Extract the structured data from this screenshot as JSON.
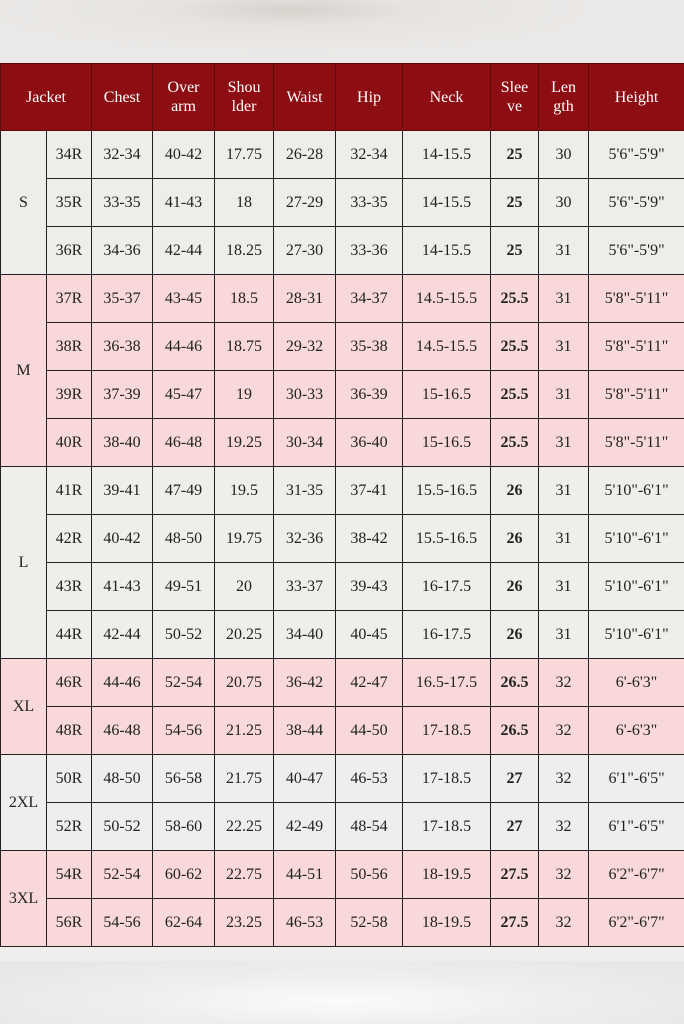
{
  "header": {
    "jacket": "Jacket",
    "chest": "Chest",
    "overarm": [
      "Over",
      "arm"
    ],
    "shoulder": [
      "Shou",
      "lder"
    ],
    "waist": "Waist",
    "hip": "Hip",
    "neck": "Neck",
    "sleeve": [
      "Slee",
      "ve"
    ],
    "length": [
      "Len",
      "gth"
    ],
    "height": "Height"
  },
  "colors": {
    "header_bg": "#8c0d12",
    "pink_row": "#f8d8d8",
    "white_row": "#ffffff"
  },
  "groups": [
    {
      "size": "S",
      "pink": false,
      "rows": [
        [
          "34R",
          "32-34",
          "40-42",
          "17.75",
          "26-28",
          "32-34",
          "14-15.5",
          "25",
          "30",
          "5'6\"-5'9\""
        ],
        [
          "35R",
          "33-35",
          "41-43",
          "18",
          "27-29",
          "33-35",
          "14-15.5",
          "25",
          "30",
          "5'6\"-5'9\""
        ],
        [
          "36R",
          "34-36",
          "42-44",
          "18.25",
          "27-30",
          "33-36",
          "14-15.5",
          "25",
          "31",
          "5'6\"-5'9\""
        ]
      ]
    },
    {
      "size": "M",
      "pink": true,
      "rows": [
        [
          "37R",
          "35-37",
          "43-45",
          "18.5",
          "28-31",
          "34-37",
          "14.5-15.5",
          "25.5",
          "31",
          "5'8\"-5'11\""
        ],
        [
          "38R",
          "36-38",
          "44-46",
          "18.75",
          "29-32",
          "35-38",
          "14.5-15.5",
          "25.5",
          "31",
          "5'8\"-5'11\""
        ],
        [
          "39R",
          "37-39",
          "45-47",
          "19",
          "30-33",
          "36-39",
          "15-16.5",
          "25.5",
          "31",
          "5'8\"-5'11\""
        ],
        [
          "40R",
          "38-40",
          "46-48",
          "19.25",
          "30-34",
          "36-40",
          "15-16.5",
          "25.5",
          "31",
          "5'8\"-5'11\""
        ]
      ]
    },
    {
      "size": "L",
      "pink": false,
      "rows": [
        [
          "41R",
          "39-41",
          "47-49",
          "19.5",
          "31-35",
          "37-41",
          "15.5-16.5",
          "26",
          "31",
          "5'10\"-6'1\""
        ],
        [
          "42R",
          "40-42",
          "48-50",
          "19.75",
          "32-36",
          "38-42",
          "15.5-16.5",
          "26",
          "31",
          "5'10\"-6'1\""
        ],
        [
          "43R",
          "41-43",
          "49-51",
          "20",
          "33-37",
          "39-43",
          "16-17.5",
          "26",
          "31",
          "5'10\"-6'1\""
        ],
        [
          "44R",
          "42-44",
          "50-52",
          "20.25",
          "34-40",
          "40-45",
          "16-17.5",
          "26",
          "31",
          "5'10\"-6'1\""
        ]
      ]
    },
    {
      "size": "XL",
      "pink": true,
      "rows": [
        [
          "46R",
          "44-46",
          "52-54",
          "20.75",
          "36-42",
          "42-47",
          "16.5-17.5",
          "26.5",
          "32",
          "6'-6'3\""
        ],
        [
          "48R",
          "46-48",
          "54-56",
          "21.25",
          "38-44",
          "44-50",
          "17-18.5",
          "26.5",
          "32",
          "6'-6'3\""
        ]
      ]
    },
    {
      "size": "2XL",
      "pink": false,
      "rows": [
        [
          "50R",
          "48-50",
          "56-58",
          "21.75",
          "40-47",
          "46-53",
          "17-18.5",
          "27",
          "32",
          "6'1\"-6'5\""
        ],
        [
          "52R",
          "50-52",
          "58-60",
          "22.25",
          "42-49",
          "48-54",
          "17-18.5",
          "27",
          "32",
          "6'1\"-6'5\""
        ]
      ]
    },
    {
      "size": "3XL",
      "pink": true,
      "rows": [
        [
          "54R",
          "52-54",
          "60-62",
          "22.75",
          "44-51",
          "50-56",
          "18-19.5",
          "27.5",
          "32",
          "6'2\"-6'7\""
        ],
        [
          "56R",
          "54-56",
          "62-64",
          "23.25",
          "46-53",
          "52-58",
          "18-19.5",
          "27.5",
          "32",
          "6'2\"-6'7\""
        ]
      ]
    }
  ]
}
